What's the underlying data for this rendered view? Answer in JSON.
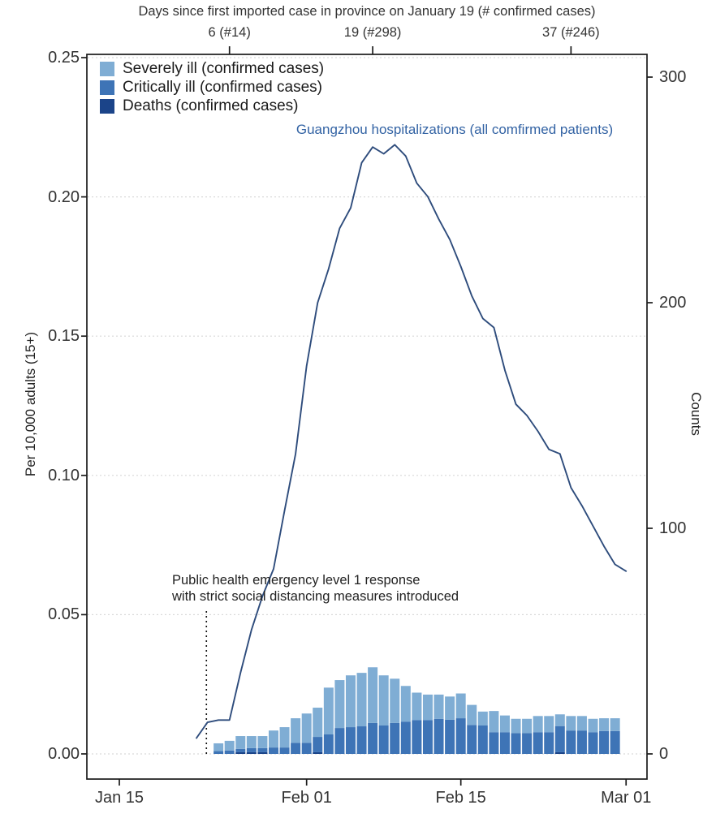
{
  "top_axis": {
    "title": "Days since first imported case in province on January 19 (# confirmed cases)",
    "ticks": [
      {
        "label": "6 (#14)",
        "day": 10
      },
      {
        "label": "19 (#298)",
        "day": 23
      },
      {
        "label": "37 (#246)",
        "day": 41
      }
    ]
  },
  "bottom_axis": {
    "ticks": [
      {
        "label": "Jan 15",
        "day": 0
      },
      {
        "label": "Feb 01",
        "day": 17
      },
      {
        "label": "Feb 15",
        "day": 31
      },
      {
        "label": "Mar 01",
        "day": 46
      }
    ]
  },
  "left_axis": {
    "label": "Per 10,000 adults (15+)",
    "ticks": [
      "0.00",
      "0.05",
      "0.10",
      "0.15",
      "0.20",
      "0.25"
    ]
  },
  "right_axis": {
    "label": "Counts",
    "ticks": [
      "0",
      "100",
      "200",
      "300"
    ]
  },
  "legend": [
    {
      "label": "Severely ill (confirmed cases)",
      "color": "#7FADD4"
    },
    {
      "label": "Critically ill (confirmed cases)",
      "color": "#3E74B6"
    },
    {
      "label": "Deaths (confirmed cases)",
      "color": "#1B4489"
    }
  ],
  "line_label": "Guangzhou hospitalizations (all comfirmed patients)",
  "annotation": {
    "line1": "Public health emergency level 1 response",
    "line2": "with strict social distancing measures introduced",
    "day": 8
  },
  "colors": {
    "line": "#2E4C7C",
    "line_label": "#3363A4",
    "grid": "#D9D9D9",
    "axis": "#1B1B1B",
    "text": "#333333"
  },
  "chart_data": [
    {
      "type": "bar",
      "stacked": true,
      "start_day": 9,
      "categories": [
        "Jan 24",
        "Jan 25",
        "Jan 26",
        "Jan 27",
        "Jan 28",
        "Jan 29",
        "Jan 30",
        "Jan 31",
        "Feb 01",
        "Feb 02",
        "Feb 03",
        "Feb 04",
        "Feb 05",
        "Feb 06",
        "Feb 07",
        "Feb 08",
        "Feb 09",
        "Feb 10",
        "Feb 11",
        "Feb 12",
        "Feb 13",
        "Feb 14",
        "Feb 15",
        "Feb 16",
        "Feb 17",
        "Feb 18",
        "Feb 19",
        "Feb 20",
        "Feb 21",
        "Feb 22",
        "Feb 23",
        "Feb 24",
        "Feb 25",
        "Feb 26",
        "Feb 27",
        "Feb 28",
        "Feb 29"
      ],
      "series": [
        {
          "name": "Severely ill (confirmed cases)",
          "values": [
            0.0028,
            0.0035,
            0.0046,
            0.0043,
            0.0043,
            0.0061,
            0.0073,
            0.0088,
            0.0105,
            0.0105,
            0.0168,
            0.0172,
            0.0186,
            0.0192,
            0.02,
            0.018,
            0.0159,
            0.0128,
            0.0099,
            0.0092,
            0.0087,
            0.0083,
            0.0089,
            0.0072,
            0.005,
            0.0076,
            0.006,
            0.0051,
            0.0051,
            0.0058,
            0.0058,
            0.0042,
            0.0052,
            0.0052,
            0.0048,
            0.0046,
            0.0046
          ]
        },
        {
          "name": "Critically ill (confirmed cases)",
          "values": [
            0.001,
            0.0012,
            0.0012,
            0.0015,
            0.0015,
            0.0023,
            0.0023,
            0.004,
            0.004,
            0.0055,
            0.007,
            0.0093,
            0.0096,
            0.0099,
            0.0111,
            0.0102,
            0.0111,
            0.0116,
            0.0121,
            0.0121,
            0.0126,
            0.0123,
            0.0128,
            0.0104,
            0.0102,
            0.0078,
            0.0078,
            0.0075,
            0.0075,
            0.0078,
            0.0078,
            0.0094,
            0.0084,
            0.0084,
            0.0078,
            0.0082,
            0.0082
          ]
        },
        {
          "name": "Deaths (confirmed cases)",
          "values": [
            0,
            0,
            0.0006,
            0.0006,
            0.0006,
            0,
            0,
            0,
            0,
            0.0006,
            0,
            0,
            0,
            0,
            0,
            0,
            0,
            0,
            0,
            0,
            0,
            0,
            0,
            0,
            0,
            0,
            0,
            0,
            0,
            0,
            0,
            0.0006,
            0,
            0,
            0,
            0,
            0
          ]
        }
      ],
      "ylabel": "Per 10,000 adults (15+)",
      "ylim": [
        0,
        0.25
      ],
      "grid": "dotted horizontal"
    },
    {
      "type": "line",
      "name": "Guangzhou hospitalizations (all comfirmed patients)",
      "start_day": 7,
      "x": [
        "Jan 22",
        "Jan 23",
        "Jan 24",
        "Jan 25",
        "Jan 26",
        "Jan 27",
        "Jan 28",
        "Jan 29",
        "Jan 30",
        "Jan 31",
        "Feb 01",
        "Feb 02",
        "Feb 03",
        "Feb 04",
        "Feb 05",
        "Feb 06",
        "Feb 07",
        "Feb 08",
        "Feb 09",
        "Feb 10",
        "Feb 11",
        "Feb 12",
        "Feb 13",
        "Feb 14",
        "Feb 15",
        "Feb 16",
        "Feb 17",
        "Feb 18",
        "Feb 19",
        "Feb 20",
        "Feb 21",
        "Feb 22",
        "Feb 23",
        "Feb 24",
        "Feb 25",
        "Feb 26",
        "Feb 27",
        "Feb 28",
        "Feb 29",
        "Mar 01"
      ],
      "values": [
        7,
        14,
        15,
        15,
        36,
        55,
        70,
        82,
        108,
        133,
        172,
        200,
        215,
        233,
        242,
        262,
        269,
        266,
        270,
        265,
        253,
        247,
        237,
        228,
        216,
        203,
        193,
        189,
        170,
        155,
        150,
        143,
        135,
        133,
        118,
        110,
        101,
        92,
        84,
        81
      ],
      "ylabel": "Counts",
      "ylim": [
        0,
        310
      ]
    }
  ]
}
